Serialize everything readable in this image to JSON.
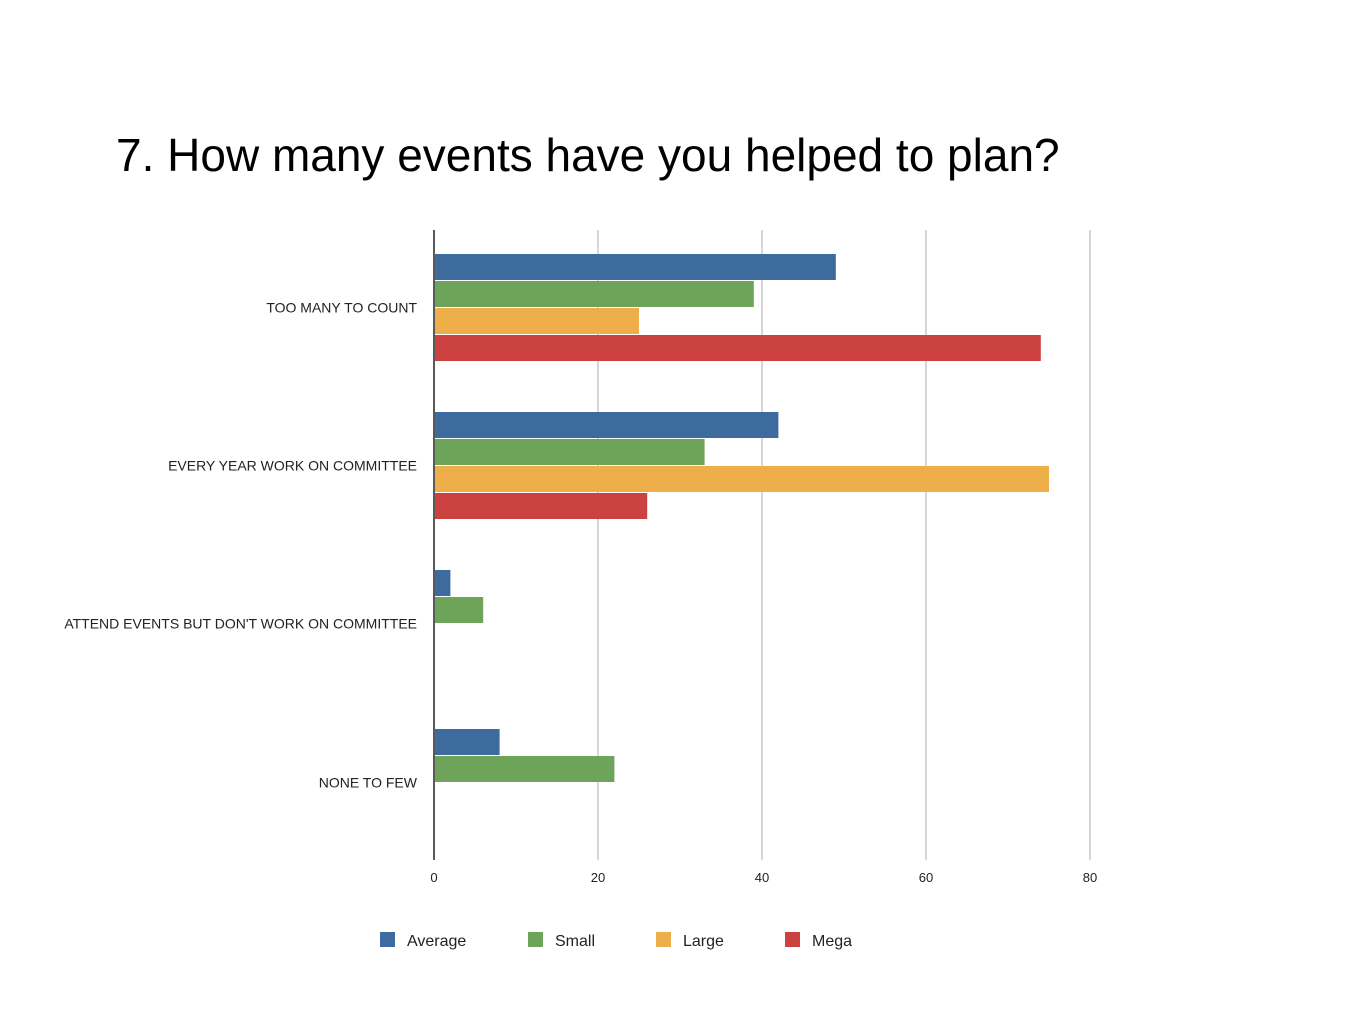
{
  "title": "7.  How many events have you helped to plan?",
  "chart_data": {
    "type": "bar",
    "orientation": "horizontal",
    "categories": [
      "TOO MANY TO COUNT",
      "EVERY YEAR WORK ON COMMITTEE",
      "ATTEND EVENTS BUT DON'T WORK ON COMMITTEE",
      "NONE TO FEW"
    ],
    "series": [
      {
        "name": "Average",
        "color": "#3d6b9e",
        "values": [
          49,
          42,
          2,
          8
        ]
      },
      {
        "name": "Small",
        "color": "#6ea45a",
        "values": [
          39,
          33,
          6,
          22
        ]
      },
      {
        "name": "Large",
        "color": "#eeae4a",
        "values": [
          25,
          75,
          0,
          0
        ]
      },
      {
        "name": "Mega",
        "color": "#cc4240",
        "values": [
          74,
          26,
          0,
          0
        ]
      }
    ],
    "xlim": [
      0,
      80
    ],
    "xticks": [
      0,
      20,
      40,
      60,
      80
    ],
    "grid": true,
    "legend_position": "bottom"
  }
}
